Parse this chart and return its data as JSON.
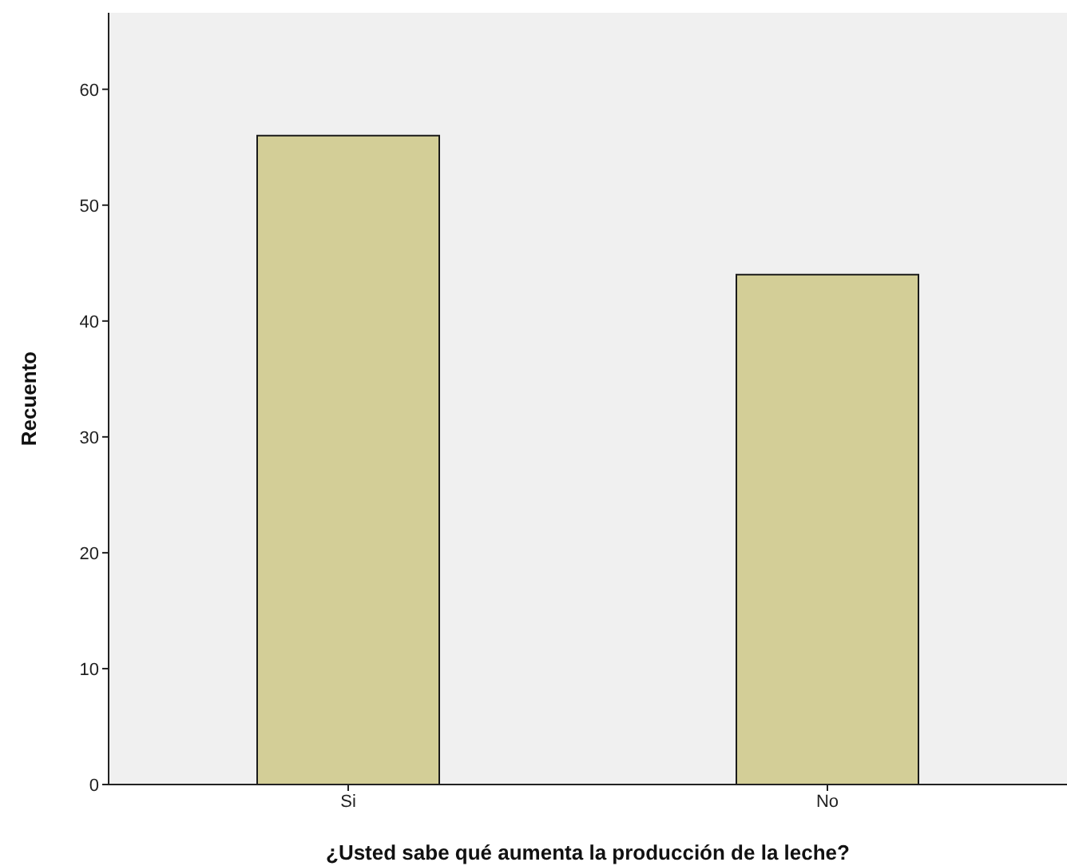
{
  "chart_data": {
    "type": "bar",
    "xlabel": "¿Usted sabe qué aumenta la producción de la leche?",
    "ylabel": "Recuento",
    "categories": [
      "Si",
      "No"
    ],
    "values": [
      56,
      44
    ],
    "color": "#d3ce97",
    "ylim": [
      0,
      66.6
    ],
    "yticks": [
      0,
      10,
      20,
      30,
      40,
      50,
      60
    ],
    "grid": false
  }
}
